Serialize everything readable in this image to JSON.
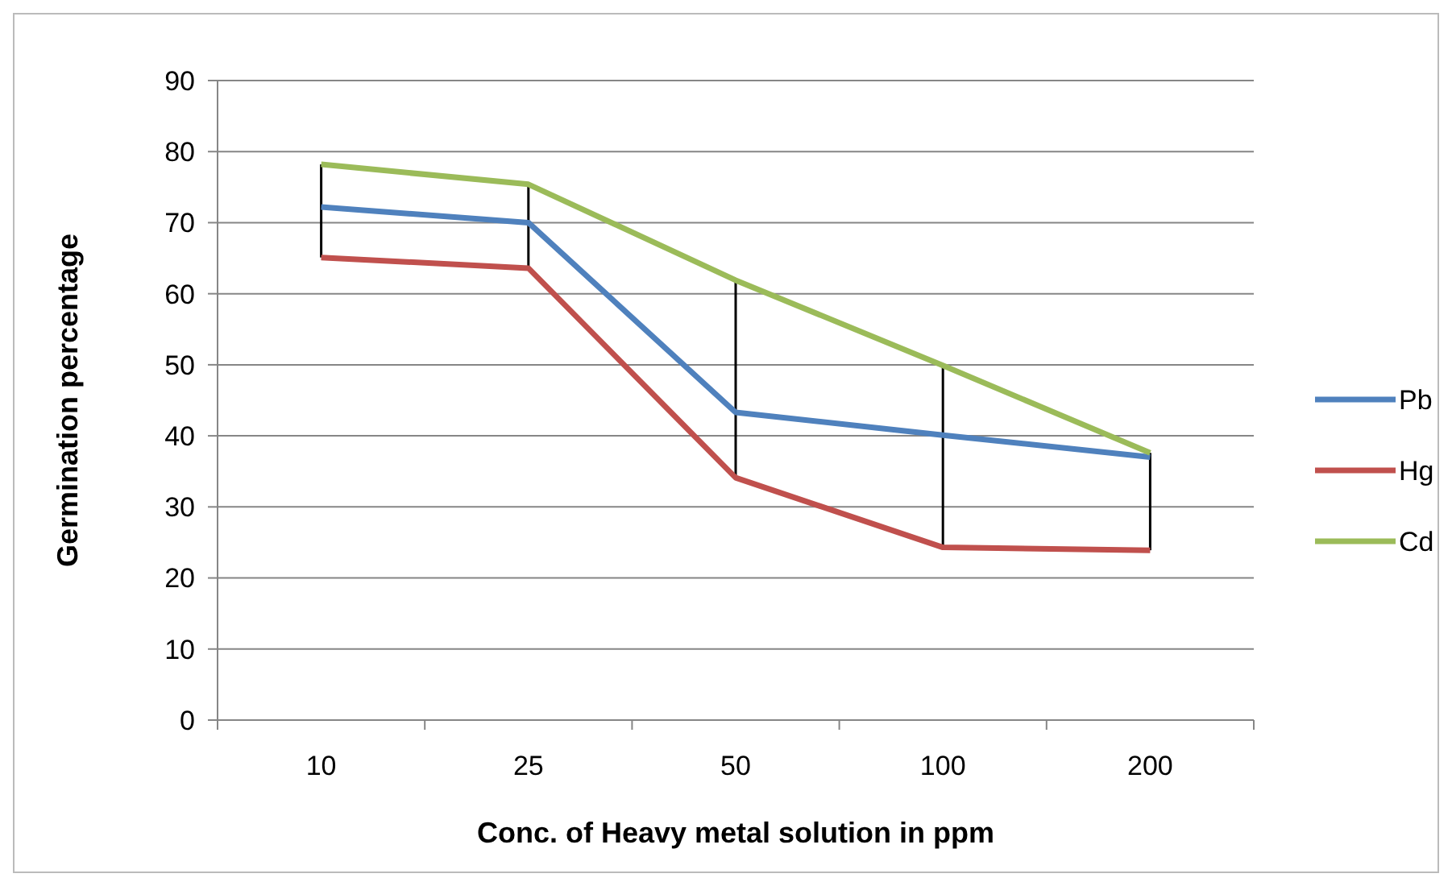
{
  "chart_data": {
    "type": "line",
    "xlabel": "Conc. of Heavy metal solution in ppm",
    "ylabel": "Germination percentage",
    "categories": [
      "10",
      "25",
      "50",
      "100",
      "200"
    ],
    "series": [
      {
        "name": "Pb",
        "color": "#4f81bd",
        "values": [
          72.2,
          70,
          43.3,
          40.1,
          37
        ]
      },
      {
        "name": "Hg",
        "color": "#c0504d",
        "values": [
          65.1,
          63.6,
          34.1,
          24.3,
          23.9
        ]
      },
      {
        "name": "Cd",
        "color": "#9bbb59",
        "values": [
          78.2,
          75.4,
          61.9,
          49.9,
          37.6
        ]
      }
    ],
    "ylim": [
      0,
      90
    ],
    "yticks": [
      0,
      10,
      20,
      30,
      40,
      50,
      60,
      70,
      80,
      90
    ],
    "grid": "y",
    "legend": "right",
    "marker": "none",
    "line_style": "solid"
  }
}
